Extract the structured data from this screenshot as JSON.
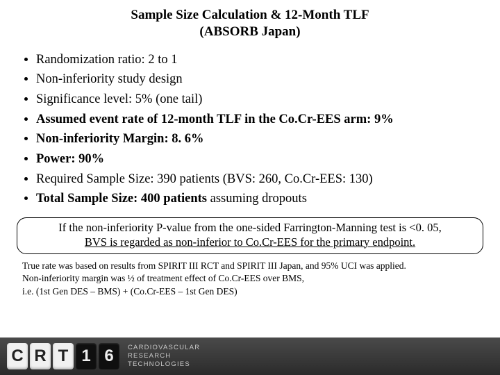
{
  "title_line1": "Sample Size Calculation & 12-Month TLF",
  "title_line2": "(ABSORB Japan)",
  "bullets": [
    {
      "text": "Randomization ratio: 2 to 1",
      "bold": false
    },
    {
      "text": "Non-inferiority study design",
      "bold": false
    },
    {
      "text": "Significance level: 5% (one tail)",
      "bold": false
    },
    {
      "text": "Assumed event rate of 12-month TLF in the Co.Cr-EES arm: 9%",
      "bold": true
    },
    {
      "text": "Non-inferiority Margin: 8. 6%",
      "bold": true
    },
    {
      "text": "Power: 90%",
      "bold": true
    },
    {
      "text": "Required Sample Size: 390 patients (BVS: 260, Co.Cr-EES: 130)",
      "bold": false
    },
    {
      "prefix_bold": "Total Sample Size: 400 patients",
      "suffix": " assuming dropouts"
    }
  ],
  "callout_line1": "If the non-inferiority P-value from the one-sided Farrington-Manning test is <0. 05,",
  "callout_line2": "BVS is regarded as non-inferior to Co.Cr-EES for the primary endpoint.",
  "footnote_line1": "True rate was based on results from SPIRIT III RCT and SPIRIT III Japan, and 95% UCI was applied.",
  "footnote_line2": "Non-inferiority margin was ½ of treatment effect of Co.Cr-EES over BMS,",
  "footnote_line3": "i.e. (1st Gen DES – BMS) + (Co.Cr-EES – 1st Gen DES)",
  "footer": {
    "logo": [
      "C",
      "R",
      "T",
      "1",
      "6"
    ],
    "text_line1": "CARDIOVASCULAR",
    "text_line2": "RESEARCH",
    "text_line3": "TECHNOLOGIES"
  }
}
